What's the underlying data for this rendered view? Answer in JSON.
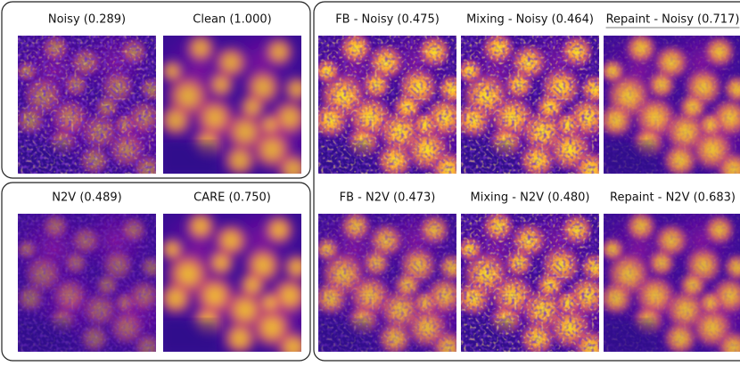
{
  "panels": [
    {
      "title": "Noisy (0.289)"
    },
    {
      "title": "Clean (1.000)"
    },
    {
      "title": "N2V (0.489)"
    },
    {
      "title": "CARE (0.750)"
    },
    {
      "title": "FB - Noisy (0.475)"
    },
    {
      "title": "Mixing - Noisy (0.464)"
    },
    {
      "title": "Repaint - Noisy (0.717)"
    },
    {
      "title": "FB - N2V (0.473)"
    },
    {
      "title": "Mixing - N2V (0.480)"
    },
    {
      "title": "Repaint - N2V (0.683)"
    }
  ]
}
